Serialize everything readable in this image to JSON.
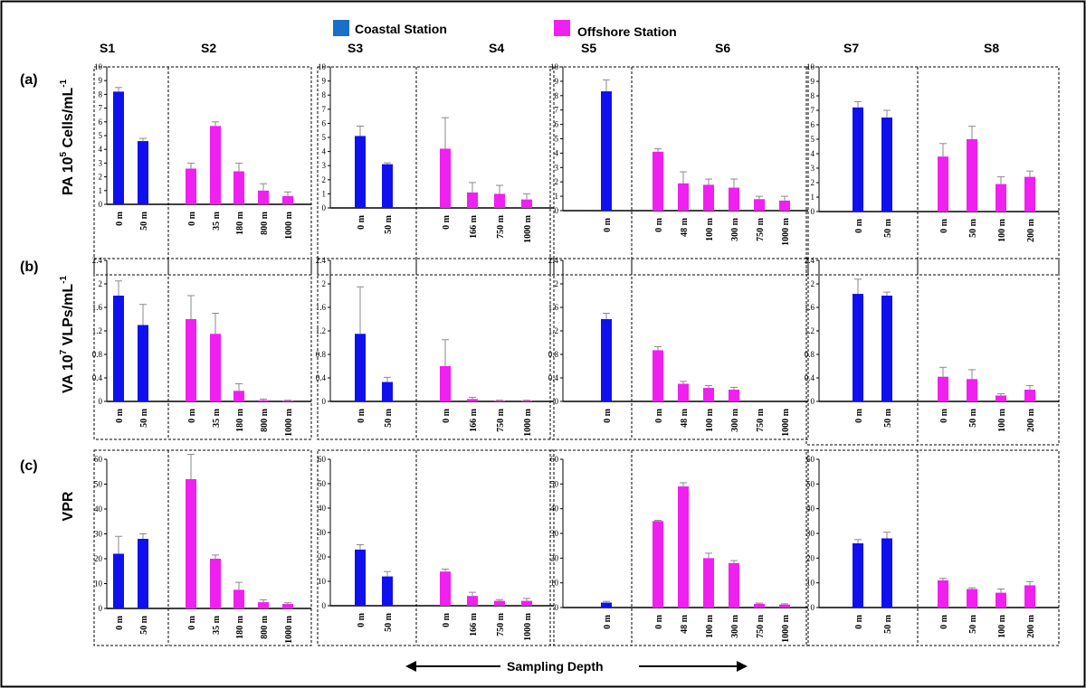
{
  "legend": {
    "coastal_label": "Coastal Station",
    "offshore_label": "Offshore Station",
    "coastal_color": "#1010ee",
    "offshore_color": "#f020f0"
  },
  "panels": {
    "a": {
      "tag": "(a)",
      "ylabel_prefix": "PA 10",
      "ylabel_exp": "5",
      "ylabel_mid": " Cells/mL",
      "ylabel_sup": "-1"
    },
    "b": {
      "tag": "(b)",
      "ylabel_prefix": "VA 10",
      "ylabel_exp": "7",
      "ylabel_mid": " VLPs/mL",
      "ylabel_sup": "-1"
    },
    "c": {
      "tag": "(c)",
      "ylabel_prefix": "VPR",
      "ylabel_exp": "",
      "ylabel_mid": "",
      "ylabel_sup": ""
    }
  },
  "xaxis": {
    "label": "Sampling Depth"
  },
  "stations": [
    {
      "name": "S1",
      "type": "coastal"
    },
    {
      "name": "S2",
      "type": "offshore"
    },
    {
      "name": "S3",
      "type": "coastal"
    },
    {
      "name": "S4",
      "type": "offshore"
    },
    {
      "name": "S5",
      "type": "coastal"
    },
    {
      "name": "S6",
      "type": "offshore"
    },
    {
      "name": "S7",
      "type": "coastal"
    },
    {
      "name": "S8",
      "type": "offshore"
    }
  ],
  "chart_data": [
    {
      "type": "bar",
      "panel": "a",
      "group": 1,
      "ylim": [
        0,
        10
      ],
      "yticks": [
        "0",
        "1",
        "2",
        "3",
        "4",
        "5",
        "6",
        "7",
        "8",
        "9",
        "10"
      ],
      "stations": [
        {
          "name": "S1",
          "type": "coastal",
          "categories": [
            "0 m",
            "50 m"
          ],
          "values": [
            8.2,
            4.6
          ],
          "errors": [
            0.3,
            0.2
          ]
        },
        {
          "name": "S2",
          "type": "offshore",
          "categories": [
            "0 m",
            "35 m",
            "180 m",
            "800 m",
            "1000 m"
          ],
          "values": [
            2.6,
            5.7,
            2.4,
            1.0,
            0.6
          ],
          "errors": [
            0.4,
            0.3,
            0.6,
            0.5,
            0.3
          ]
        }
      ]
    },
    {
      "type": "bar",
      "panel": "a",
      "group": 2,
      "ylim": [
        0,
        10
      ],
      "yticks": [
        "0",
        "1",
        "2",
        "3",
        "4",
        "5",
        "6",
        "7",
        "8",
        "9",
        "10"
      ],
      "stations": [
        {
          "name": "S3",
          "type": "coastal",
          "categories": [
            "0 m",
            "50 m"
          ],
          "values": [
            5.1,
            3.1
          ],
          "errors": [
            0.7,
            0.1
          ]
        },
        {
          "name": "S4",
          "type": "offshore",
          "categories": [
            "0 m",
            "166 m",
            "750 m",
            "1000 m"
          ],
          "values": [
            4.2,
            1.1,
            1.0,
            0.6
          ],
          "errors": [
            2.2,
            0.7,
            0.6,
            0.4
          ]
        }
      ]
    },
    {
      "type": "bar",
      "panel": "a",
      "group": 3,
      "ylim": [
        0,
        10
      ],
      "yticks": [
        "0",
        "1",
        "2",
        "3",
        "4",
        "5",
        "6",
        "7",
        "8",
        "9",
        "10"
      ],
      "stations": [
        {
          "name": "S5",
          "type": "coastal",
          "categories": [
            "0 m"
          ],
          "values": [
            8.3
          ],
          "errors": [
            0.8
          ]
        },
        {
          "name": "S6",
          "type": "offshore",
          "categories": [
            "0 m",
            "48 m",
            "100 m",
            "300 m",
            "750 m",
            "1000 m"
          ],
          "values": [
            4.1,
            1.9,
            1.8,
            1.6,
            0.8,
            0.7
          ],
          "errors": [
            0.2,
            0.8,
            0.4,
            0.6,
            0.2,
            0.3
          ]
        }
      ]
    },
    {
      "type": "bar",
      "panel": "a",
      "group": 4,
      "ylim": [
        0,
        10
      ],
      "yticks": [
        "0",
        "1",
        "2",
        "3",
        "4",
        "5",
        "6",
        "7",
        "8",
        "9",
        "10"
      ],
      "stations": [
        {
          "name": "S7",
          "type": "coastal",
          "categories": [
            "0 m",
            "50 m"
          ],
          "values": [
            7.2,
            6.5
          ],
          "errors": [
            0.4,
            0.5
          ]
        },
        {
          "name": "S8",
          "type": "offshore",
          "categories": [
            "0 m",
            "50 m",
            "100 m",
            "200 m"
          ],
          "values": [
            3.8,
            5.0,
            1.9,
            2.4
          ],
          "errors": [
            0.9,
            0.9,
            0.5,
            0.4
          ]
        }
      ]
    },
    {
      "type": "bar",
      "panel": "b",
      "group": 1,
      "ylim": [
        0,
        2.4
      ],
      "yticks": [
        "0",
        "0.4",
        "0.8",
        "1.2",
        "1.6",
        "2",
        "2.4"
      ],
      "stations": [
        {
          "name": "S1",
          "type": "coastal",
          "categories": [
            "0 m",
            "50 m"
          ],
          "values": [
            1.8,
            1.3
          ],
          "errors": [
            0.25,
            0.35
          ]
        },
        {
          "name": "S2",
          "type": "offshore",
          "categories": [
            "0 m",
            "35 m",
            "180 m",
            "800 m",
            "1000 m"
          ],
          "values": [
            1.4,
            1.15,
            0.18,
            0.02,
            0.01
          ],
          "errors": [
            0.4,
            0.35,
            0.12,
            0.02,
            0.01
          ]
        }
      ]
    },
    {
      "type": "bar",
      "panel": "b",
      "group": 2,
      "ylim": [
        0,
        2.4
      ],
      "yticks": [
        "0",
        "0.4",
        "0.8",
        "1.2",
        "1.6",
        "2",
        "2.4"
      ],
      "stations": [
        {
          "name": "S3",
          "type": "coastal",
          "categories": [
            "0 m",
            "50 m"
          ],
          "values": [
            1.15,
            0.33
          ],
          "errors": [
            0.8,
            0.08
          ]
        },
        {
          "name": "S4",
          "type": "offshore",
          "categories": [
            "0 m",
            "166 m",
            "750 m",
            "1000 m"
          ],
          "values": [
            0.6,
            0.04,
            0.01,
            0.01
          ],
          "errors": [
            0.45,
            0.03,
            0.01,
            0.01
          ]
        }
      ]
    },
    {
      "type": "bar",
      "panel": "b",
      "group": 3,
      "ylim": [
        0,
        2.4
      ],
      "yticks": [
        "0",
        "0.4",
        "0.8",
        "1.2",
        "1.6",
        "2",
        "2.4"
      ],
      "stations": [
        {
          "name": "S5",
          "type": "coastal",
          "categories": [
            "0 m"
          ],
          "values": [
            1.4
          ],
          "errors": [
            0.1
          ]
        },
        {
          "name": "S6",
          "type": "offshore",
          "categories": [
            "0 m",
            "48 m",
            "100 m",
            "300 m",
            "750 m",
            "1000 m"
          ],
          "values": [
            0.87,
            0.3,
            0.23,
            0.2,
            0.0,
            0.0
          ],
          "errors": [
            0.06,
            0.04,
            0.04,
            0.04,
            0.0,
            0.0
          ]
        }
      ]
    },
    {
      "type": "bar",
      "panel": "b",
      "group": 4,
      "ylim": [
        0,
        2.4
      ],
      "yticks": [
        "0",
        "0.4",
        "0.8",
        "1.2",
        "1.6",
        "2",
        "2.4"
      ],
      "stations": [
        {
          "name": "S7",
          "type": "coastal",
          "categories": [
            "0 m",
            "50 m"
          ],
          "values": [
            1.83,
            1.8
          ],
          "errors": [
            0.25,
            0.06
          ]
        },
        {
          "name": "S8",
          "type": "offshore",
          "categories": [
            "0 m",
            "50 m",
            "100 m",
            "200 m"
          ],
          "values": [
            0.42,
            0.38,
            0.1,
            0.2
          ],
          "errors": [
            0.16,
            0.16,
            0.03,
            0.07
          ]
        }
      ]
    },
    {
      "type": "bar",
      "panel": "c",
      "group": 1,
      "ylim": [
        0,
        60
      ],
      "yticks": [
        "0",
        "10",
        "20",
        "30",
        "40",
        "50",
        "60"
      ],
      "stations": [
        {
          "name": "S1",
          "type": "coastal",
          "categories": [
            "0 m",
            "50 m"
          ],
          "values": [
            22,
            28
          ],
          "errors": [
            7,
            2
          ]
        },
        {
          "name": "S2",
          "type": "offshore",
          "categories": [
            "0 m",
            "35 m",
            "180 m",
            "800 m",
            "1000 m"
          ],
          "values": [
            52,
            20,
            7.5,
            2.5,
            1.8
          ],
          "errors": [
            10,
            1.5,
            3,
            1,
            0.5
          ]
        }
      ]
    },
    {
      "type": "bar",
      "panel": "c",
      "group": 2,
      "ylim": [
        0,
        60
      ],
      "yticks": [
        "0",
        "10",
        "20",
        "30",
        "40",
        "50",
        "60"
      ],
      "stations": [
        {
          "name": "S3",
          "type": "coastal",
          "categories": [
            "0 m",
            "50 m"
          ],
          "values": [
            23,
            12
          ],
          "errors": [
            2,
            2
          ]
        },
        {
          "name": "S4",
          "type": "offshore",
          "categories": [
            "0 m",
            "166 m",
            "750 m",
            "1000 m"
          ],
          "values": [
            14,
            4,
            2,
            2
          ],
          "errors": [
            1,
            1.5,
            0.5,
            1
          ]
        }
      ]
    },
    {
      "type": "bar",
      "panel": "c",
      "group": 3,
      "ylim": [
        0,
        60
      ],
      "yticks": [
        "0",
        "10",
        "20",
        "30",
        "40",
        "50",
        "60"
      ],
      "stations": [
        {
          "name": "S5",
          "type": "coastal",
          "categories": [
            "0 m"
          ],
          "values": [
            2
          ],
          "errors": [
            0.5
          ]
        },
        {
          "name": "S6",
          "type": "offshore",
          "categories": [
            "0 m",
            "48 m",
            "100 m",
            "300 m",
            "750 m",
            "1000 m"
          ],
          "values": [
            35,
            49,
            20,
            18,
            1.5,
            1.2
          ],
          "errors": [
            0.3,
            1.5,
            2,
            1,
            0.3,
            0.3
          ]
        }
      ]
    },
    {
      "type": "bar",
      "panel": "c",
      "group": 4,
      "ylim": [
        0,
        60
      ],
      "yticks": [
        "0",
        "10",
        "20",
        "30",
        "40",
        "50",
        "60"
      ],
      "stations": [
        {
          "name": "S7",
          "type": "coastal",
          "categories": [
            "0 m",
            "50 m"
          ],
          "values": [
            26,
            28
          ],
          "errors": [
            1.5,
            2.5
          ]
        },
        {
          "name": "S8",
          "type": "offshore",
          "categories": [
            "0 m",
            "50 m",
            "100 m",
            "200 m"
          ],
          "values": [
            11,
            7.5,
            6,
            9
          ],
          "errors": [
            0.8,
            0.5,
            1.5,
            1.5
          ]
        }
      ]
    }
  ]
}
